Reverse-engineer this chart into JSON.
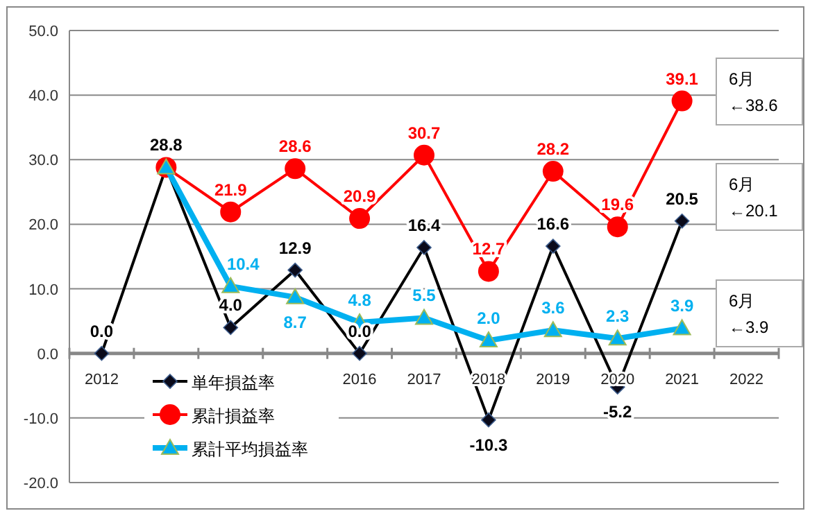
{
  "chart_data": {
    "type": "line",
    "categories": [
      "2012",
      null,
      null,
      null,
      "2016",
      "2017",
      "2018",
      "2019",
      "2020",
      "2021",
      "2022"
    ],
    "ylim": [
      -20,
      50
    ],
    "yticks": [
      {
        "value": -20,
        "label": "-20.0"
      },
      {
        "value": -10,
        "label": "-10.0"
      },
      {
        "value": 0,
        "label": "0.0"
      },
      {
        "value": 10,
        "label": "10.0"
      },
      {
        "value": 20,
        "label": "20.0"
      },
      {
        "value": 30,
        "label": "30.0"
      },
      {
        "value": 40,
        "label": "40.0"
      },
      {
        "value": 50,
        "label": "50.0"
      }
    ],
    "grid": "y",
    "legend": "bottom left",
    "series": [
      {
        "name": "単年損益率",
        "color": "#000000",
        "marker": "diamond",
        "values": [
          0.0,
          28.8,
          4.0,
          12.9,
          0.0,
          16.4,
          -10.3,
          16.6,
          -5.2,
          20.5,
          null
        ],
        "value_labels": [
          "0.0",
          "28.8",
          "4.0",
          "12.9",
          "0.0",
          "16.4",
          "-10.3",
          "16.6",
          "-5.2",
          "20.5",
          null
        ]
      },
      {
        "name": "累計損益率",
        "color": "#ff0000",
        "marker": "circle",
        "values": [
          null,
          28.8,
          21.9,
          28.6,
          20.9,
          30.7,
          12.7,
          28.2,
          19.6,
          39.1,
          null
        ],
        "value_labels": [
          null,
          null,
          "21.9",
          "28.6",
          "20.9",
          "30.7",
          "12.7",
          "28.2",
          "19.6",
          "39.1",
          null
        ]
      },
      {
        "name": "累計平均損益率",
        "color": "#00b0f0",
        "marker": "triangle",
        "values": [
          null,
          28.8,
          10.4,
          8.7,
          4.8,
          5.5,
          2.0,
          3.6,
          2.3,
          3.9,
          null
        ],
        "value_labels": [
          null,
          null,
          "10.4",
          "8.7",
          "4.8",
          "5.5",
          "2.0",
          "3.6",
          "2.3",
          "3.9",
          null
        ]
      }
    ],
    "annotations": [
      "6月\n←38.6",
      "6月\n←20.1",
      "6月\n←3.9"
    ]
  }
}
